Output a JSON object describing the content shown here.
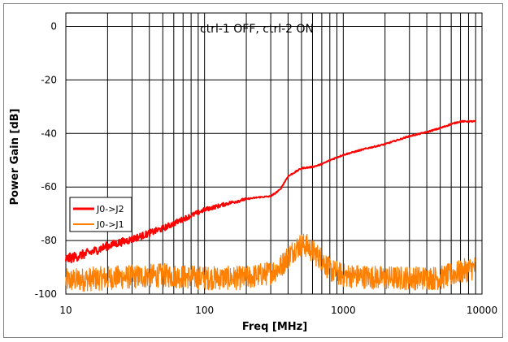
{
  "chart_data": {
    "type": "line",
    "title": "",
    "annotation": "ctrl-1 OFF, ctrl-2 ON",
    "xlabel": "Freq [MHz]",
    "ylabel": "Power Gain [dB]",
    "xscale": "log",
    "xlim": [
      10,
      10000
    ],
    "ylim": [
      -100,
      5
    ],
    "grid": true,
    "legend_position": "left",
    "x_ticks": [
      "10",
      "100",
      "1000",
      "10000"
    ],
    "y_ticks": [
      "0",
      "-20",
      "-40",
      "-60",
      "-80",
      "-100"
    ],
    "series": [
      {
        "name": "J0->J2",
        "color": "#ff0000",
        "x": [
          10,
          15,
          20,
          30,
          50,
          70,
          100,
          150,
          200,
          250,
          300,
          350,
          400,
          500,
          600,
          700,
          800,
          1000,
          1500,
          2000,
          3000,
          4000,
          5000,
          6000,
          7000,
          8000,
          9000
        ],
        "values": [
          -87,
          -84.5,
          -82,
          -79.5,
          -75.5,
          -72,
          -68.5,
          -66,
          -64.5,
          -63.8,
          -63.5,
          -61,
          -56,
          -53,
          -52.5,
          -51.5,
          -50,
          -48,
          -45.5,
          -44,
          -41,
          -39.5,
          -38,
          -36.5,
          -35.5,
          -35.5,
          -35.5
        ]
      },
      {
        "name": "J0->J1",
        "color": "#ff7f00",
        "x": [
          10,
          20,
          50,
          100,
          200,
          300,
          350,
          400,
          450,
          500,
          550,
          600,
          700,
          800,
          1000,
          2000,
          5000,
          9000
        ],
        "values": [
          -95,
          -94,
          -93,
          -94,
          -94,
          -92,
          -90,
          -86,
          -83,
          -81.5,
          -82,
          -84,
          -87,
          -91,
          -93,
          -94,
          -94,
          -90
        ]
      }
    ]
  }
}
